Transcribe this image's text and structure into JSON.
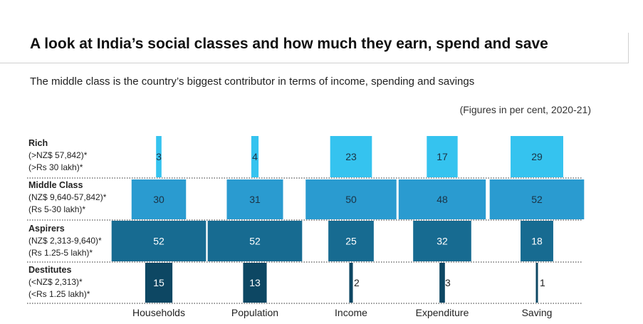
{
  "title": "A look at India’s social classes and how much they earn, spend and save",
  "subtitle": "The middle class is the country’s biggest contributor in terms of income, spending and savings",
  "note": "(Figures in per cent, 2020-21)",
  "colors": {
    "rich": "#35c3ef",
    "middle": "#2a9bd0",
    "aspirers": "#176b91",
    "destitutes": "#0d4763",
    "grid": "#555555"
  },
  "classes": [
    {
      "name": "Rich",
      "line1": "(>NZ$ 57,842)*",
      "line2": "(>Rs 30 lakh)*"
    },
    {
      "name": "Middle Class",
      "line1": "(NZ$ 9,640-57,842)*",
      "line2": "(Rs 5-30 lakh)*"
    },
    {
      "name": "Aspirers",
      "line1": "(NZ$ 2,313-9,640)*",
      "line2": "(Rs 1.25-5 lakh)*"
    },
    {
      "name": "Destitutes",
      "line1": "(<NZ$ 2,313)*",
      "line2": "(<Rs 1.25 lakh)*"
    }
  ],
  "chart_data": {
    "type": "bar",
    "orientation": "stacked-pyramid",
    "unit": "per cent",
    "categories": [
      "Households",
      "Population",
      "Income",
      "Expenditure",
      "Saving"
    ],
    "series": [
      {
        "name": "Rich",
        "values": [
          3,
          4,
          23,
          17,
          29
        ]
      },
      {
        "name": "Middle Class",
        "values": [
          30,
          31,
          50,
          48,
          52
        ]
      },
      {
        "name": "Aspirers",
        "values": [
          52,
          52,
          25,
          32,
          18
        ]
      },
      {
        "name": "Destitutes",
        "values": [
          15,
          13,
          2,
          3,
          1
        ]
      }
    ]
  }
}
